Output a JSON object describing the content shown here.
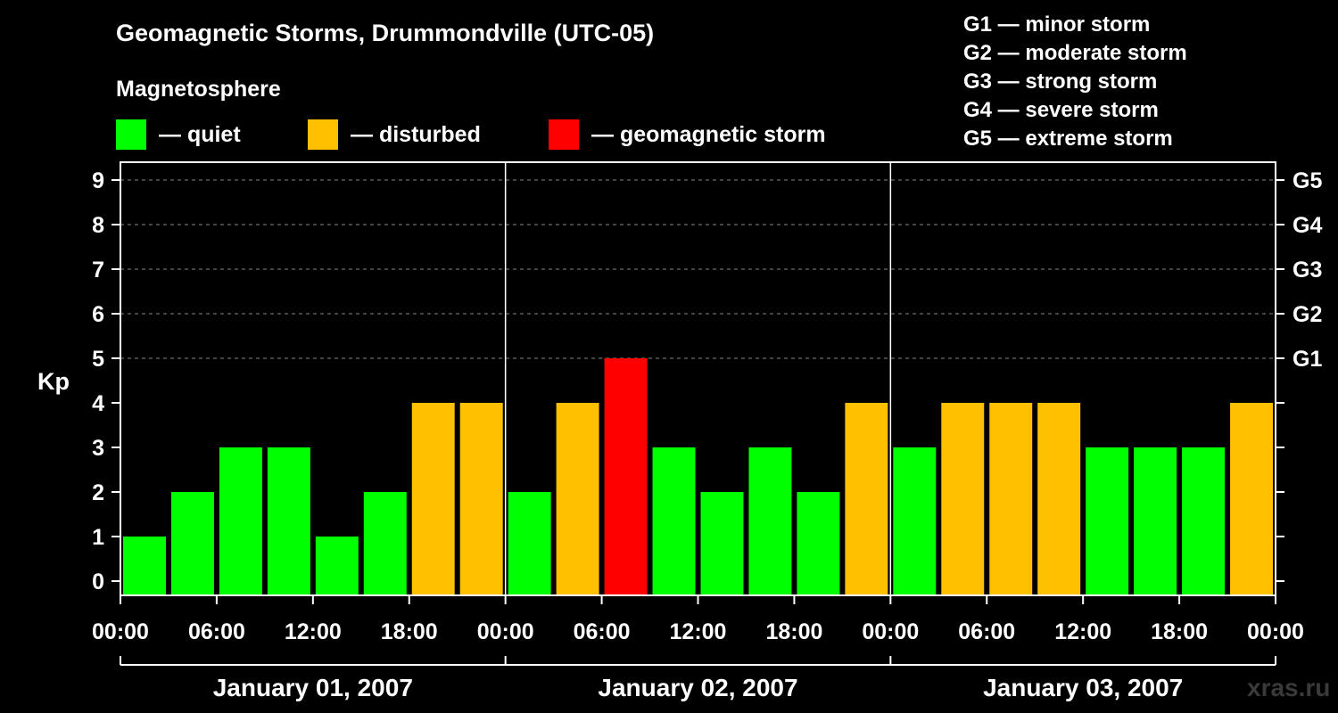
{
  "page": {
    "title": "Geomagnetic Storms, Drummondville (UTC-05)",
    "subtitle": "Magnetosphere",
    "watermark": "xras.ru"
  },
  "legend": [
    {
      "label": "— quiet",
      "color": "#00ff00"
    },
    {
      "label": "— disturbed",
      "color": "#ffc000"
    },
    {
      "label": "— geomagnetic storm",
      "color": "#ff0000"
    }
  ],
  "storm_scale": [
    "G1 — minor storm",
    "G2 — moderate storm",
    "G3 — strong storm",
    "G4 — severe storm",
    "G5 — extreme storm"
  ],
  "chart_data": {
    "type": "bar",
    "ylabel": "Kp",
    "ylim": [
      0,
      9
    ],
    "yticks": [
      "0",
      "1",
      "2",
      "3",
      "4",
      "5",
      "6",
      "7",
      "8",
      "9"
    ],
    "right_ticks": [
      {
        "y": 5,
        "label": "G1"
      },
      {
        "y": 6,
        "label": "G2"
      },
      {
        "y": 7,
        "label": "G3"
      },
      {
        "y": 8,
        "label": "G4"
      },
      {
        "y": 9,
        "label": "G5"
      }
    ],
    "xlim_hours": [
      0,
      72
    ],
    "xticks": [
      "00:00",
      "06:00",
      "12:00",
      "18:00",
      "00:00",
      "06:00",
      "12:00",
      "18:00",
      "00:00",
      "06:00",
      "12:00",
      "18:00",
      "00:00"
    ],
    "days": [
      "January 01, 2007",
      "January 02, 2007",
      "January 03, 2007"
    ],
    "interval_hours": 3,
    "colors": {
      "quiet": "#00ff00",
      "disturbed": "#ffc000",
      "storm": "#ff0000"
    },
    "values": [
      1,
      2,
      3,
      3,
      1,
      2,
      4,
      4,
      2,
      4,
      5,
      3,
      2,
      3,
      2,
      4,
      3,
      4,
      4,
      4,
      3,
      3,
      3,
      4
    ],
    "grid": "dashed horizontal at 5-9"
  }
}
